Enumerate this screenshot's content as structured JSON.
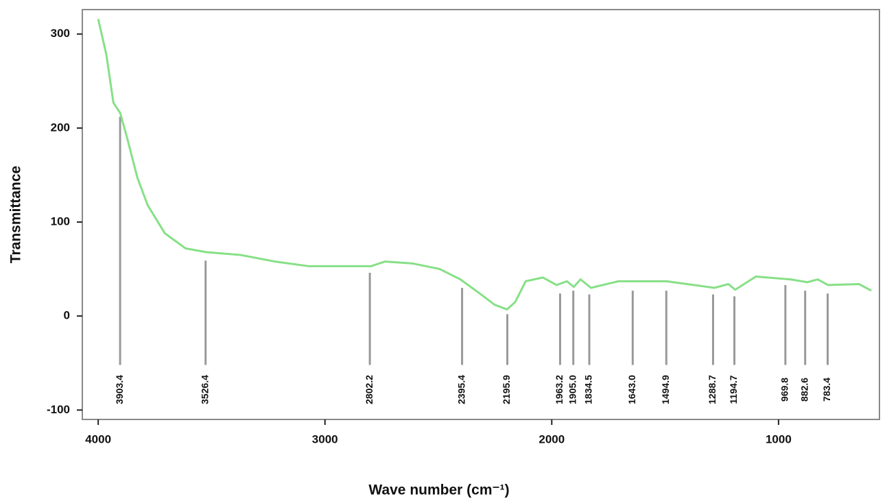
{
  "chart_data": {
    "type": "line",
    "y_label": "Transmittance",
    "x_label": "Wave number (cm⁻¹)",
    "xlim": [
      4070,
      555
    ],
    "ylim": [
      -110,
      326
    ],
    "xticks": [
      4000,
      3000,
      2000,
      1000
    ],
    "yticks": [
      -100,
      0,
      100,
      200,
      300
    ],
    "series": [
      {
        "color": "#86e086",
        "x": [
          4000,
          3964,
          3933,
          3903,
          3873,
          3827,
          3782,
          3706,
          3615,
          3524,
          3373,
          3221,
          3070,
          2797,
          2736,
          2615,
          2494,
          2403,
          2312,
          2252,
          2197,
          2161,
          2115,
          2039,
          1979,
          1933,
          1903,
          1873,
          1827,
          1706,
          1585,
          1494,
          1373,
          1282,
          1221,
          1191,
          1100,
          948,
          873,
          827,
          782,
          645,
          591
        ],
        "values": [
          316,
          278,
          227,
          216,
          190,
          147,
          118,
          88,
          72,
          68,
          65,
          58,
          53,
          53,
          58,
          56,
          50,
          39,
          23,
          12,
          7,
          15,
          37,
          41,
          33,
          37,
          31,
          39,
          30,
          37,
          37,
          37,
          33,
          30,
          34,
          28,
          42,
          39,
          36,
          39,
          33,
          34,
          27
        ]
      }
    ],
    "peaks": {
      "values": [
        3903.4,
        3526.4,
        2802.2,
        2395.4,
        2195.9,
        1963.2,
        1905.0,
        1834.5,
        1643.0,
        1494.9,
        1288.7,
        1194.7,
        969.8,
        882.6,
        783.4
      ],
      "value_labels": [
        "3903.4",
        "3526.4",
        "2802.2",
        "2395.4",
        "2195.9",
        "1963.2",
        "1905.0",
        "1834.5",
        "1643.0",
        "1494.9",
        "1288.7",
        "1194.7",
        "969.8",
        "882.6",
        "783.4"
      ],
      "tops": [
        212,
        59,
        46,
        30,
        2,
        24,
        27,
        23,
        27,
        27,
        23,
        21,
        33,
        27,
        24
      ],
      "bottom": -52
    }
  }
}
